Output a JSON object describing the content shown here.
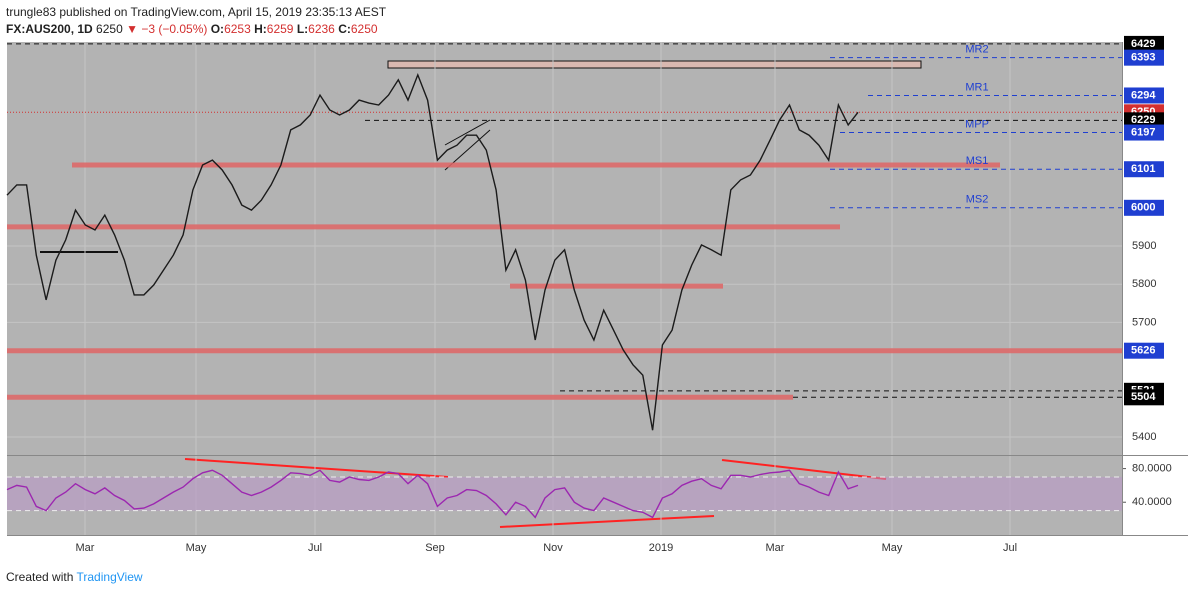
{
  "header": {
    "publisher": "trungle83 published on TradingView.com, April 15, 2019 23:35:13 AEST",
    "symbol": "FX:AUS200, 1D",
    "last": 6250,
    "arrow": "▼",
    "change": "−3 (−0.05%)",
    "ohlc": [
      {
        "label": "O:",
        "value": 6253
      },
      {
        "label": "H:",
        "value": 6259
      },
      {
        "label": "L:",
        "value": 6236
      },
      {
        "label": "C:",
        "value": 6250
      }
    ]
  },
  "chart_data": {
    "type": "line",
    "color": "#1b1b1b",
    "values": [
      6033,
      6060,
      6060,
      5876,
      5759,
      5863,
      5916,
      5994,
      5955,
      5942,
      5981,
      5929,
      5863,
      5772,
      5772,
      5798,
      5837,
      5876,
      5929,
      6047,
      6112,
      6125,
      6099,
      6060,
      6007,
      5994,
      6020,
      6060,
      6112,
      6204,
      6217,
      6243,
      6295,
      6256,
      6243,
      6256,
      6282,
      6274,
      6269,
      6295,
      6335,
      6282,
      6348,
      6282,
      6125,
      6151,
      6164,
      6190,
      6190,
      6151,
      6047,
      5837,
      5890,
      5811,
      5654,
      5785,
      5863,
      5890,
      5785,
      5706,
      5654,
      5732,
      5680,
      5628,
      5589,
      5562,
      5418,
      5641,
      5680,
      5785,
      5850,
      5903,
      5890,
      5876,
      6047,
      6073,
      6086,
      6125,
      6177,
      6230,
      6269,
      6204,
      6190,
      6164,
      6125,
      6269,
      6217,
      6250
    ],
    "ylim": [
      5353,
      6434
    ],
    "yticks": [
      5400,
      5700,
      5800,
      5900
    ],
    "grid": true,
    "xlabels": [
      "Mar",
      "May",
      "Jul",
      "Sep",
      "Nov",
      "2019",
      "Mar",
      "May",
      "Jul"
    ],
    "badges": [
      {
        "value": 6429,
        "color": "#000000"
      },
      {
        "value": 6393,
        "color": "#1f3fd1"
      },
      {
        "value": 6294,
        "color": "#1f3fd1"
      },
      {
        "value": 6250,
        "color": "#d32f2f"
      },
      {
        "value": 6229,
        "color": "#000000"
      },
      {
        "value": 6197,
        "color": "#1f3fd1"
      },
      {
        "value": 6101,
        "color": "#1f3fd1"
      },
      {
        "value": 6000,
        "color": "#1f3fd1"
      },
      {
        "value": 5626,
        "color": "#1f3fd1"
      },
      {
        "value": 5521,
        "color": "#000000"
      },
      {
        "value": 5504,
        "color": "#000000"
      }
    ],
    "pivots": [
      {
        "name": "MR2",
        "value": 6393
      },
      {
        "name": "MR1",
        "value": 6294
      },
      {
        "name": "MPP",
        "value": 6197
      },
      {
        "name": "MS1",
        "value": 6101
      },
      {
        "name": "MS2",
        "value": 6000
      }
    ],
    "levels": [
      6112,
      5950,
      5795,
      5626,
      5504
    ],
    "level_color": "#e06666",
    "rsi": {
      "color": "#9c27b0",
      "ylim": [
        1,
        95
      ],
      "yticks": [
        {
          "value": 80,
          "label": "80.0000"
        },
        {
          "value": 40,
          "label": "40.0000"
        }
      ],
      "bands": [
        30,
        70
      ],
      "values": [
        55,
        60,
        58,
        35,
        30,
        45,
        52,
        62,
        55,
        50,
        57,
        48,
        42,
        32,
        33,
        38,
        45,
        52,
        58,
        68,
        75,
        78,
        72,
        62,
        52,
        48,
        52,
        58,
        66,
        75,
        74,
        72,
        78,
        66,
        64,
        70,
        67,
        66,
        70,
        76,
        74,
        62,
        72,
        62,
        35,
        45,
        48,
        55,
        54,
        48,
        38,
        25,
        40,
        35,
        22,
        45,
        55,
        57,
        40,
        33,
        30,
        45,
        40,
        35,
        30,
        28,
        22,
        45,
        50,
        60,
        65,
        68,
        60,
        56,
        72,
        72,
        70,
        73,
        75,
        76,
        78,
        62,
        58,
        52,
        48,
        76,
        56,
        60
      ]
    }
  },
  "footer": {
    "text": "Created with",
    "brand": "TradingView"
  }
}
